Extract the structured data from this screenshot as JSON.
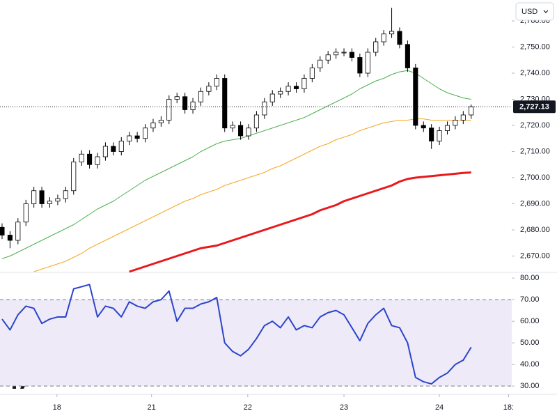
{
  "chart_data": [
    {
      "type": "candlestick",
      "currency": "USD",
      "last_price_label": "2,727.13",
      "up_color": "#ffffff",
      "down_color": "#000000",
      "edge_color": "#000000",
      "xlim": [
        -0.26,
        64.1
      ],
      "ylim": [
        2664,
        2768
      ],
      "yticks": [
        {
          "value": 2670,
          "label": "2,670.00"
        },
        {
          "value": 2680,
          "label": "2,680.00"
        },
        {
          "value": 2690,
          "label": "2,690.00"
        },
        {
          "value": 2700,
          "label": "2,700.00"
        },
        {
          "value": 2710,
          "label": "2,710.00"
        },
        {
          "value": 2720,
          "label": "2,720.00"
        },
        {
          "value": 2730,
          "label": "2,730.00"
        },
        {
          "value": 2740,
          "label": "2,740.00"
        },
        {
          "value": 2750,
          "label": "2,750.00"
        },
        {
          "value": 2760,
          "label": "2,760.00"
        }
      ],
      "open": [
        2681,
        2678,
        2676,
        2683,
        2690,
        2695,
        2690,
        2691,
        2692,
        2695,
        2706,
        2709,
        2705,
        2708,
        2712,
        2710,
        2714,
        2716,
        2715,
        2719,
        2721,
        2722,
        2730,
        2731,
        2726,
        2729,
        2733,
        2735,
        2738,
        2719,
        2720,
        2716,
        2719,
        2724,
        2729,
        2732,
        2733,
        2735,
        2734,
        2738,
        2742,
        2745,
        2747,
        2748,
        2748,
        2746,
        2740,
        2748,
        2752,
        2755,
        2756,
        2751,
        2742,
        2720,
        2719,
        2714,
        2718,
        2720,
        2722,
        2724
      ],
      "high": [
        2682.5,
        2679.5,
        2684.5,
        2691.5,
        2696.5,
        2696.5,
        2692.5,
        2693.5,
        2696.5,
        2707.5,
        2710.5,
        2710.5,
        2709.5,
        2713.5,
        2713.5,
        2715.5,
        2717.5,
        2717.5,
        2720.5,
        2722.5,
        2723.5,
        2731.5,
        2732.5,
        2732.5,
        2730.5,
        2734.5,
        2736.5,
        2739.5,
        2739.5,
        2721.5,
        2721.5,
        2720.5,
        2725.5,
        2730.5,
        2733.5,
        2734.5,
        2736.5,
        2736.5,
        2739.5,
        2743.5,
        2746.5,
        2748.5,
        2749.5,
        2749.5,
        2749.5,
        2747.5,
        2749.5,
        2753.5,
        2756.5,
        2765,
        2757.5,
        2752.5,
        2743.5,
        2721.5,
        2720.5,
        2719.5,
        2721.5,
        2723.5,
        2725.5,
        2728
      ],
      "low": [
        2676.5,
        2673,
        2674.5,
        2681.5,
        2688.5,
        2688.5,
        2688.5,
        2689.5,
        2690.5,
        2693.5,
        2704.5,
        2703.5,
        2703.5,
        2706.5,
        2708.5,
        2708.5,
        2712.5,
        2713.5,
        2713.5,
        2717.5,
        2719.5,
        2720.5,
        2728.5,
        2724.5,
        2724.5,
        2727.5,
        2731.5,
        2733.5,
        2717.5,
        2717.5,
        2714.5,
        2714.5,
        2717.5,
        2722.5,
        2727.5,
        2730.5,
        2731.5,
        2732.5,
        2732.5,
        2736.5,
        2740.5,
        2743.5,
        2745.5,
        2746.5,
        2744.5,
        2738.5,
        2738.5,
        2746.5,
        2750.5,
        2753.5,
        2749.5,
        2740.5,
        2718.5,
        2717.5,
        2711,
        2712.5,
        2716.5,
        2718.5,
        2720.5,
        2722.5
      ],
      "close": [
        2678,
        2676,
        2683,
        2690,
        2695,
        2690,
        2691,
        2692,
        2695,
        2706,
        2709,
        2705,
        2708,
        2712,
        2710,
        2714,
        2716,
        2715,
        2719,
        2721,
        2722,
        2730,
        2731,
        2726,
        2729,
        2733,
        2735,
        2738,
        2719,
        2720,
        2716,
        2719,
        2724,
        2729,
        2732,
        2733,
        2735,
        2734,
        2738,
        2742,
        2745,
        2747,
        2748,
        2748,
        2746,
        2740,
        2748,
        2752,
        2755,
        2756,
        2751,
        2742,
        2720,
        2719,
        2714,
        2718,
        2720,
        2722,
        2724,
        2727.13
      ],
      "series": [
        {
          "color": "#4caf50",
          "width": 1,
          "values": [
            2669,
            2670,
            2671.5,
            2673,
            2674.5,
            2676,
            2677.5,
            2679,
            2680.5,
            2682,
            2684,
            2686,
            2688,
            2689.5,
            2691,
            2693,
            2695,
            2697,
            2699,
            2700.5,
            2702,
            2703.5,
            2705,
            2706.5,
            2708,
            2710,
            2711.5,
            2713,
            2714,
            2714.5,
            2715,
            2716,
            2717,
            2718,
            2719,
            2720,
            2721,
            2722,
            2723,
            2724.5,
            2726,
            2727.5,
            2729,
            2730.5,
            2732,
            2734,
            2735.5,
            2737,
            2738,
            2739.5,
            2740.5,
            2741,
            2740,
            2738,
            2736,
            2734,
            2732.5,
            2731.5,
            2730.5,
            2730
          ]
        },
        {
          "color": "#f5a623",
          "width": 1,
          "values": [
            null,
            null,
            null,
            null,
            2664,
            2665,
            2666,
            2667,
            2668,
            2669.5,
            2671,
            2673,
            2674.5,
            2676,
            2677.5,
            2679,
            2680.5,
            2682,
            2683.5,
            2685,
            2686.5,
            2688,
            2689.5,
            2691,
            2692,
            2693.5,
            2694.5,
            2695.5,
            2697,
            2698,
            2699,
            2700,
            2701,
            2702,
            2703.5,
            2704.5,
            2706,
            2707.5,
            2709,
            2710.5,
            2712,
            2713,
            2714.5,
            2715.5,
            2716.5,
            2718,
            2719,
            2720,
            2721,
            2721.5,
            2722,
            2722,
            2722.5,
            2722.5,
            2722,
            2722,
            2722,
            2722,
            2722,
            2722
          ]
        },
        {
          "color": "#e8191c",
          "width": 3,
          "values": [
            null,
            null,
            null,
            null,
            null,
            null,
            null,
            null,
            null,
            null,
            null,
            null,
            null,
            null,
            null,
            null,
            2664,
            2665,
            2666,
            2667,
            2668,
            2669,
            2670,
            2671,
            2672,
            2673,
            2673.5,
            2674,
            2675,
            2676,
            2677,
            2678,
            2679,
            2680,
            2681,
            2682,
            2683,
            2684,
            2685,
            2686,
            2687.5,
            2688.5,
            2689.5,
            2691,
            2692,
            2693,
            2694,
            2695,
            2696,
            2697,
            2698.5,
            2699.5,
            2700,
            2700.3,
            2700.6,
            2700.9,
            2701.2,
            2701.5,
            2701.8,
            2702
          ]
        }
      ]
    },
    {
      "type": "line",
      "color": "#2a45c9",
      "band": [
        30,
        70
      ],
      "band_color": "#efeaf8",
      "xlim": [
        -0.26,
        64.1
      ],
      "ylim": [
        26.5,
        82.3
      ],
      "yticks": [
        {
          "value": 30,
          "label": "30.00"
        },
        {
          "value": 40,
          "label": "40.00"
        },
        {
          "value": 50,
          "label": "50.00"
        },
        {
          "value": 60,
          "label": "60.00"
        },
        {
          "value": 70,
          "label": "70.00"
        },
        {
          "value": 80,
          "label": "80.00"
        }
      ],
      "xticks": [
        {
          "value": 6.9,
          "label": "18"
        },
        {
          "value": 18.8,
          "label": "21"
        },
        {
          "value": 30.9,
          "label": "22"
        },
        {
          "value": 43,
          "label": "23"
        },
        {
          "value": 55,
          "label": "24"
        },
        {
          "value": 63.7,
          "label": "18:"
        }
      ],
      "values": [
        61,
        56,
        63,
        67,
        66,
        59,
        61,
        62,
        62,
        75,
        76,
        77,
        62,
        67,
        66,
        62,
        69,
        67,
        66,
        69,
        70,
        74,
        60,
        66,
        66,
        68,
        69,
        71,
        50,
        46,
        44,
        47,
        52,
        58,
        60,
        57,
        62,
        56,
        58,
        57,
        62,
        64,
        65,
        63,
        57,
        51,
        59,
        63,
        66,
        58,
        57,
        50,
        34,
        32,
        31,
        34,
        36,
        40,
        42,
        48
      ]
    }
  ]
}
